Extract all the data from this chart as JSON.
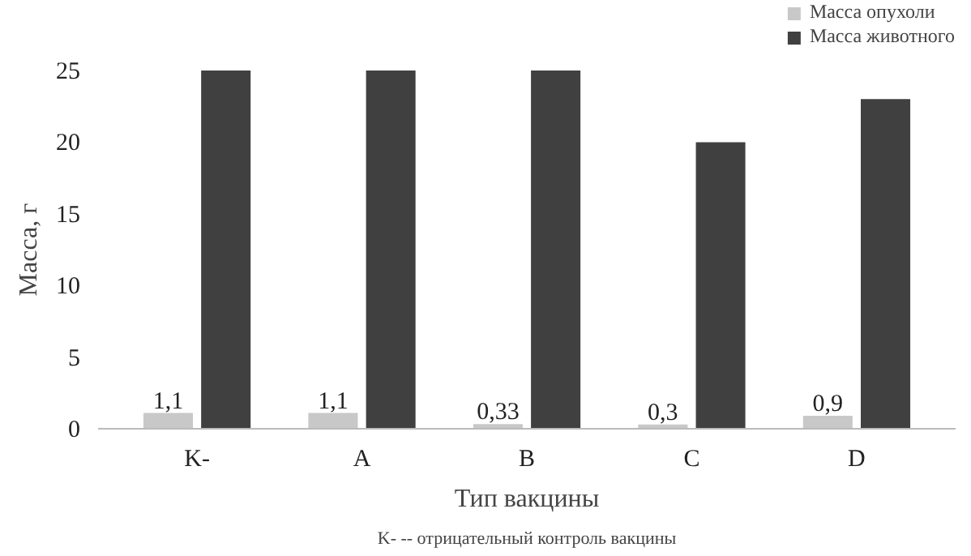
{
  "chart_data": {
    "type": "bar",
    "xlabel": "Тип вакцины",
    "ylabel": "Масса, г",
    "categories": [
      "K-",
      "A",
      "B",
      "C",
      "D"
    ],
    "series": [
      {
        "name": "Масса опухоли",
        "color": "#c8c8c8",
        "values": [
          1.1,
          1.1,
          0.33,
          0.3,
          0.9
        ],
        "value_labels": [
          "1,1",
          "1,1",
          "0,33",
          "0,3",
          "0,9"
        ]
      },
      {
        "name": "Масса животного",
        "color": "#404040",
        "values": [
          25,
          25,
          25,
          20,
          23
        ]
      }
    ],
    "ylim": [
      0,
      25
    ],
    "yticks": [
      0,
      5,
      10,
      15,
      20,
      25
    ],
    "grid": false,
    "legend": "top right",
    "annotations": [
      "K- -- отрицательный контроль вакцины"
    ]
  }
}
